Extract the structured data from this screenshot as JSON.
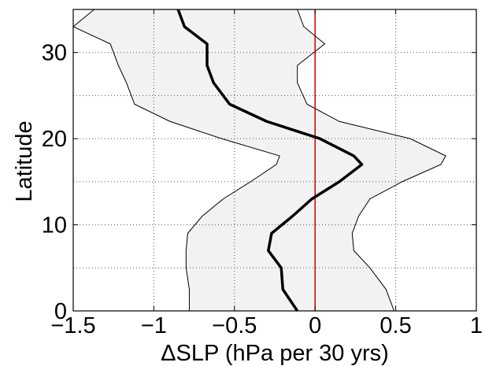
{
  "chart_data": {
    "type": "line",
    "xlabel": "ΔSLP (hPa per 30 yrs)",
    "ylabel": "Latitude",
    "y": [
      0,
      2.5,
      5,
      7,
      9,
      11,
      13,
      15,
      17,
      18,
      20,
      22,
      24,
      26.5,
      28.5,
      31,
      33,
      35
    ],
    "band": {
      "fill": "#f2f2f2",
      "edge_color": "#000000",
      "lower": [
        -0.78,
        -0.78,
        -0.8,
        -0.8,
        -0.79,
        -0.7,
        -0.57,
        -0.4,
        -0.24,
        -0.22,
        -0.58,
        -0.9,
        -1.12,
        -1.17,
        -1.22,
        -1.27,
        -1.5,
        -1.37
      ],
      "upper": [
        0.49,
        0.44,
        0.34,
        0.24,
        0.23,
        0.27,
        0.34,
        0.54,
        0.78,
        0.81,
        0.59,
        0.15,
        -0.05,
        -0.11,
        -0.11,
        0.06,
        -0.07,
        -0.11
      ]
    },
    "series": [
      {
        "color": "#000000",
        "values": [
          -0.11,
          -0.2,
          -0.21,
          -0.29,
          -0.27,
          -0.14,
          -0.02,
          0.15,
          0.29,
          0.24,
          0.03,
          -0.3,
          -0.53,
          -0.63,
          -0.67,
          -0.67,
          -0.81,
          -0.85
        ]
      }
    ],
    "ref_line": {
      "value": 0,
      "color": "#cc0000"
    },
    "xlim": [
      -1.5,
      1
    ],
    "ylim": [
      0,
      35
    ],
    "xticks": [
      {
        "value": -1.5,
        "label": "−1.5"
      },
      {
        "value": -1,
        "label": "−1"
      },
      {
        "value": -0.5,
        "label": "−0.5"
      },
      0,
      0.5,
      1
    ],
    "yticks": [
      0,
      10,
      20,
      30
    ],
    "y_minor_grid": [
      5,
      15,
      25
    ],
    "grid": true
  }
}
